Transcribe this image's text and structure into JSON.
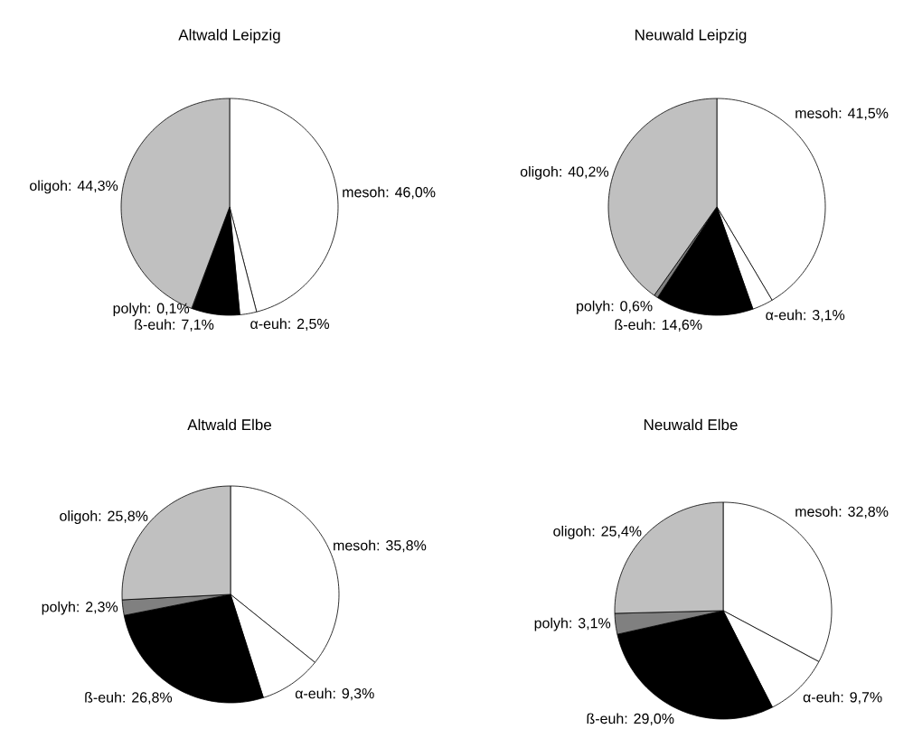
{
  "chart_data": [
    {
      "type": "pie",
      "title": "Altwald Leipzig",
      "categories": [
        "mesoh",
        "α-euh",
        "ß-euh",
        "polyh",
        "oligoh"
      ],
      "values": [
        46.0,
        2.5,
        7.1,
        0.1,
        44.3
      ],
      "value_labels": [
        ": 46,0%",
        ": 2,5%",
        ": 7,1%",
        ": 0,1%",
        ": 44,3%"
      ],
      "colors": [
        "#ffffff",
        "#ffffff",
        "#000000",
        "#808080",
        "#c0c0c0"
      ]
    },
    {
      "type": "pie",
      "title": "Neuwald Leipzig",
      "categories": [
        "mesoh",
        "α-euh",
        "ß-euh",
        "polyh",
        "oligoh"
      ],
      "values": [
        41.5,
        3.1,
        14.6,
        0.6,
        40.2
      ],
      "value_labels": [
        ": 41,5%",
        ": 3,1%",
        ": 14,6%",
        ": 0,6%",
        ": 40,2%"
      ],
      "colors": [
        "#ffffff",
        "#ffffff",
        "#000000",
        "#808080",
        "#c0c0c0"
      ]
    },
    {
      "type": "pie",
      "title": "Altwald Elbe",
      "categories": [
        "mesoh",
        "α-euh",
        "ß-euh",
        "polyh",
        "oligoh"
      ],
      "values": [
        35.8,
        9.3,
        26.8,
        2.3,
        25.8
      ],
      "value_labels": [
        ": 35,8%",
        ": 9,3%",
        ": 26,8%",
        ": 2,3%",
        ": 25,8%"
      ],
      "colors": [
        "#ffffff",
        "#ffffff",
        "#000000",
        "#808080",
        "#c0c0c0"
      ]
    },
    {
      "type": "pie",
      "title": "Neuwald Elbe",
      "categories": [
        "mesoh",
        "α-euh",
        "ß-euh",
        "polyh",
        "oligoh"
      ],
      "values": [
        32.8,
        9.7,
        29.0,
        3.1,
        25.4
      ],
      "value_labels": [
        ": 32,8%",
        ": 9,7%",
        ": 29,0%",
        ": 3,1%",
        ": 25,4%"
      ],
      "colors": [
        "#ffffff",
        "#ffffff",
        "#000000",
        "#808080",
        "#c0c0c0"
      ]
    }
  ]
}
